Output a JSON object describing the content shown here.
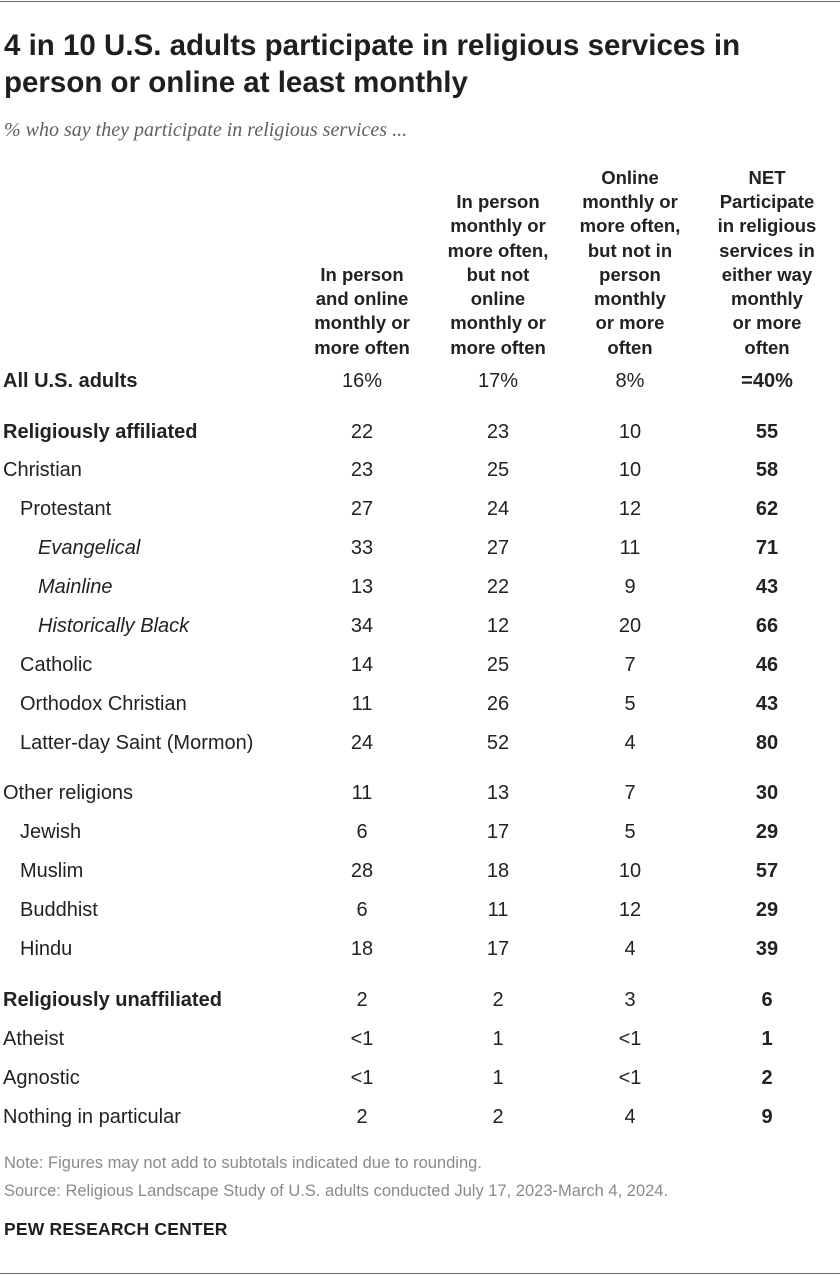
{
  "title": "4 in 10 U.S. adults participate in religious services in person or online at least monthly",
  "subtitle": "% who say they participate in religious services ...",
  "chart_data": {
    "type": "table",
    "columns": [
      [
        "In person",
        "and online",
        "monthly or",
        "more often"
      ],
      [
        "In person",
        "monthly or",
        "more often,",
        "but not",
        "online",
        "monthly or",
        "more often"
      ],
      [
        "Online",
        "monthly or",
        "more often,",
        "but not in",
        "person",
        "monthly",
        "or more",
        "often"
      ],
      [
        "NET",
        "Participate",
        "in religious",
        "services in",
        "either way",
        "monthly",
        "or more",
        "often"
      ]
    ],
    "rows": [
      {
        "label": "All U.S. adults",
        "style": "bold",
        "values": [
          "16%",
          "17%",
          "8%",
          "=40%"
        ]
      },
      {
        "label": "Religiously affiliated",
        "style": "bold",
        "values": [
          "22",
          "23",
          "10",
          "55"
        ]
      },
      {
        "label": "Christian",
        "style": "plain",
        "values": [
          "23",
          "25",
          "10",
          "58"
        ]
      },
      {
        "label": "Protestant",
        "style": "ind1",
        "values": [
          "27",
          "24",
          "12",
          "62"
        ]
      },
      {
        "label": "Evangelical",
        "style": "ind2",
        "values": [
          "33",
          "27",
          "11",
          "71"
        ]
      },
      {
        "label": "Mainline",
        "style": "ind2",
        "values": [
          "13",
          "22",
          "9",
          "43"
        ]
      },
      {
        "label": "Historically Black",
        "style": "ind2",
        "values": [
          "34",
          "12",
          "20",
          "66"
        ]
      },
      {
        "label": "Catholic",
        "style": "ind1",
        "values": [
          "14",
          "25",
          "7",
          "46"
        ]
      },
      {
        "label": "Orthodox Christian",
        "style": "ind1",
        "values": [
          "11",
          "26",
          "5",
          "43"
        ]
      },
      {
        "label": "Latter-day Saint (Mormon)",
        "style": "ind1",
        "values": [
          "24",
          "52",
          "4",
          "80"
        ]
      },
      {
        "label": "Other religions",
        "style": "plain",
        "values": [
          "11",
          "13",
          "7",
          "30"
        ]
      },
      {
        "label": "Jewish",
        "style": "ind1",
        "values": [
          "6",
          "17",
          "5",
          "29"
        ]
      },
      {
        "label": "Muslim",
        "style": "ind1",
        "values": [
          "28",
          "18",
          "10",
          "57"
        ]
      },
      {
        "label": "Buddhist",
        "style": "ind1",
        "values": [
          "6",
          "11",
          "12",
          "29"
        ]
      },
      {
        "label": "Hindu",
        "style": "ind1",
        "values": [
          "18",
          "17",
          "4",
          "39"
        ]
      },
      {
        "label": "Religiously unaffiliated",
        "style": "bold",
        "values": [
          "2",
          "2",
          "3",
          "6"
        ]
      },
      {
        "label": "Atheist",
        "style": "plain",
        "values": [
          "<1",
          "1",
          "<1",
          "1"
        ]
      },
      {
        "label": "Agnostic",
        "style": "plain",
        "values": [
          "<1",
          "1",
          "<1",
          "2"
        ]
      },
      {
        "label": "Nothing in particular",
        "style": "plain",
        "values": [
          "2",
          "2",
          "4",
          "9"
        ]
      }
    ]
  },
  "note": "Note: Figures may not add to subtotals indicated due to rounding.",
  "source": "Source: Religious Landscape Study of U.S. adults conducted July 17, 2023-March 4, 2024.",
  "brand": "PEW RESEARCH CENTER"
}
